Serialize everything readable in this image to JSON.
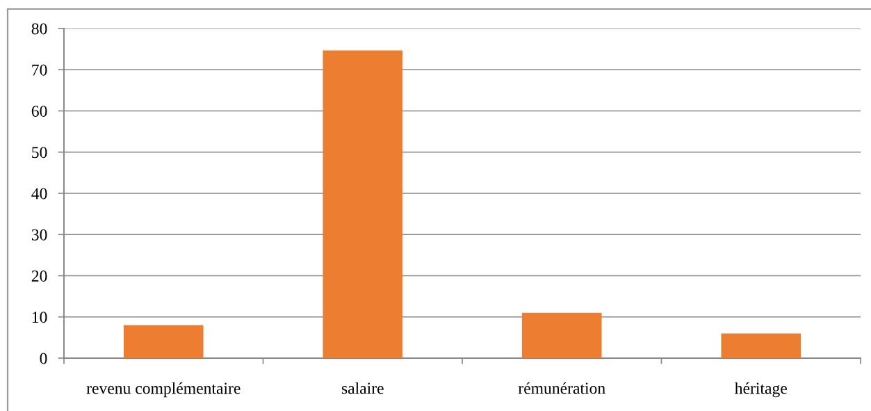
{
  "chart_data": {
    "type": "bar",
    "categories": [
      "revenu complémentaire",
      "salaire",
      "rémunération",
      "héritage"
    ],
    "values": [
      8,
      74.7,
      11,
      6
    ],
    "color": "#ed7d31",
    "ylim": [
      0,
      80
    ],
    "yticks": [
      0,
      10,
      20,
      30,
      40,
      50,
      60,
      70,
      80
    ],
    "grid": "y"
  }
}
